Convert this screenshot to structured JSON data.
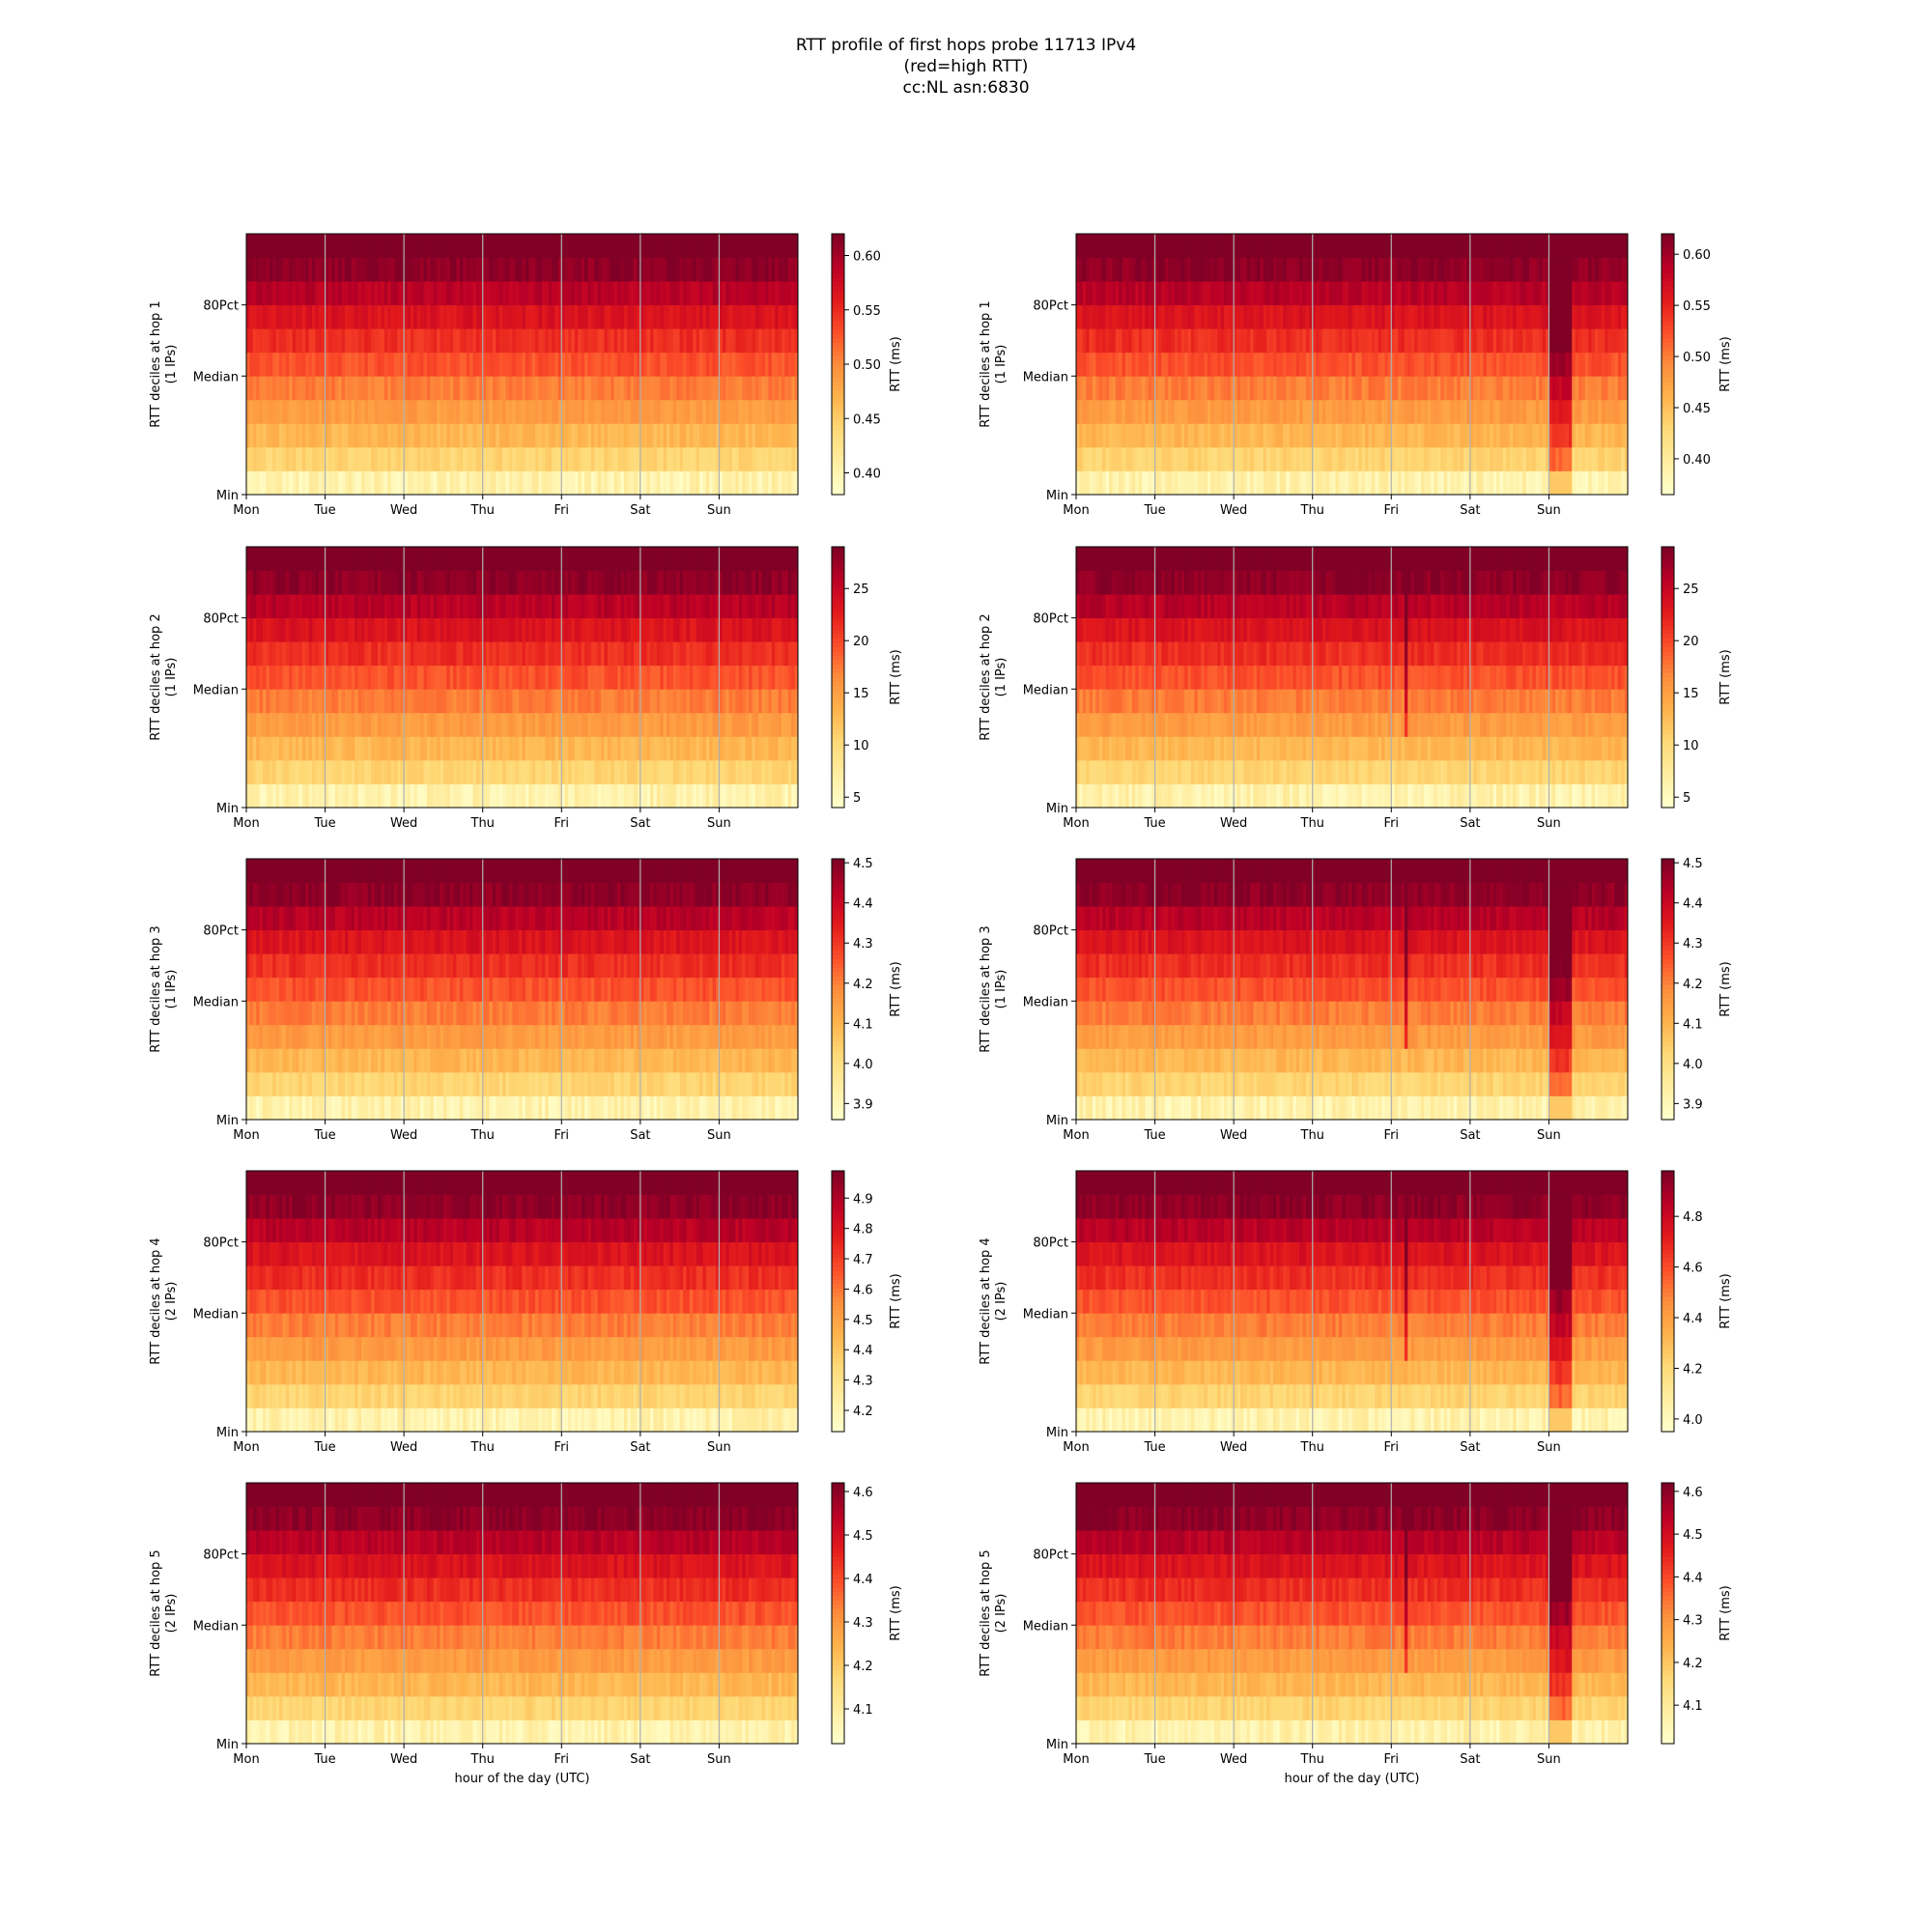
{
  "figure": {
    "title_lines": [
      "RTT profile of first hops probe 11713 IPv4",
      "(red=high RTT)",
      "cc:NL asn:6830"
    ]
  },
  "chart_data": [
    {
      "type": "heatmap",
      "hop": 1,
      "ylabel_lines": [
        "RTT deciles at hop 1",
        "(1 IPs)"
      ],
      "x_ticklabels": [
        "Mon",
        "Tue",
        "Wed",
        "Thu",
        "Fri",
        "Sat",
        "Sun"
      ],
      "xlabel": "",
      "y_ticklabels": [
        "Min",
        "Median",
        "80Pct"
      ],
      "colorbar": {
        "label": "RTT (ms)",
        "range": [
          0.38,
          0.62
        ],
        "ticks": [
          0.4,
          0.45,
          0.5,
          0.55,
          0.6
        ],
        "tick_labels": [
          "0.40",
          "0.45",
          "0.50",
          "0.55",
          "0.60"
        ]
      },
      "pattern": {
        "dip": false,
        "spike": false
      }
    },
    {
      "type": "heatmap",
      "hop": 1,
      "ylabel_lines": [
        "RTT deciles at hop 1",
        "(1 IPs)"
      ],
      "x_ticklabels": [
        "Mon",
        "Tue",
        "Wed",
        "Thu",
        "Fri",
        "Sat",
        "Sun"
      ],
      "xlabel": "",
      "y_ticklabels": [
        "Min",
        "Median",
        "80Pct"
      ],
      "colorbar": {
        "label": "RTT (ms)",
        "range": [
          0.365,
          0.62
        ],
        "ticks": [
          0.4,
          0.45,
          0.5,
          0.55,
          0.6
        ],
        "tick_labels": [
          "0.40",
          "0.45",
          "0.50",
          "0.55",
          "0.60"
        ]
      },
      "pattern": {
        "dip": true,
        "spike": false
      }
    },
    {
      "type": "heatmap",
      "hop": 2,
      "ylabel_lines": [
        "RTT deciles at hop 2",
        "(1 IPs)"
      ],
      "x_ticklabels": [
        "Mon",
        "Tue",
        "Wed",
        "Thu",
        "Fri",
        "Sat",
        "Sun"
      ],
      "xlabel": "",
      "y_ticklabels": [
        "Min",
        "Median",
        "80Pct"
      ],
      "colorbar": {
        "label": "RTT (ms)",
        "range": [
          4,
          29
        ],
        "ticks": [
          5,
          10,
          15,
          20,
          25
        ],
        "tick_labels": [
          "5",
          "10",
          "15",
          "20",
          "25"
        ]
      },
      "pattern": {
        "dip": false,
        "spike": false
      }
    },
    {
      "type": "heatmap",
      "hop": 2,
      "ylabel_lines": [
        "RTT deciles at hop 2",
        "(1 IPs)"
      ],
      "x_ticklabels": [
        "Mon",
        "Tue",
        "Wed",
        "Thu",
        "Fri",
        "Sat",
        "Sun"
      ],
      "xlabel": "",
      "y_ticklabels": [
        "Min",
        "Median",
        "80Pct"
      ],
      "colorbar": {
        "label": "RTT (ms)",
        "range": [
          4,
          29
        ],
        "ticks": [
          5,
          10,
          15,
          20,
          25
        ],
        "tick_labels": [
          "5",
          "10",
          "15",
          "20",
          "25"
        ]
      },
      "pattern": {
        "dip": false,
        "spike": true
      }
    },
    {
      "type": "heatmap",
      "hop": 3,
      "ylabel_lines": [
        "RTT deciles at hop 3",
        "(1 IPs)"
      ],
      "x_ticklabels": [
        "Mon",
        "Tue",
        "Wed",
        "Thu",
        "Fri",
        "Sat",
        "Sun"
      ],
      "xlabel": "",
      "y_ticklabels": [
        "Min",
        "Median",
        "80Pct"
      ],
      "colorbar": {
        "label": "RTT (ms)",
        "range": [
          3.86,
          4.51
        ],
        "ticks": [
          3.9,
          4.0,
          4.1,
          4.2,
          4.3,
          4.4,
          4.5
        ],
        "tick_labels": [
          "3.9",
          "4.0",
          "4.1",
          "4.2",
          "4.3",
          "4.4",
          "4.5"
        ]
      },
      "pattern": {
        "dip": false,
        "spike": false
      }
    },
    {
      "type": "heatmap",
      "hop": 3,
      "ylabel_lines": [
        "RTT deciles at hop 3",
        "(1 IPs)"
      ],
      "x_ticklabels": [
        "Mon",
        "Tue",
        "Wed",
        "Thu",
        "Fri",
        "Sat",
        "Sun"
      ],
      "xlabel": "",
      "y_ticklabels": [
        "Min",
        "Median",
        "80Pct"
      ],
      "colorbar": {
        "label": "RTT (ms)",
        "range": [
          3.86,
          4.51
        ],
        "ticks": [
          3.9,
          4.0,
          4.1,
          4.2,
          4.3,
          4.4,
          4.5
        ],
        "tick_labels": [
          "3.9",
          "4.0",
          "4.1",
          "4.2",
          "4.3",
          "4.4",
          "4.5"
        ]
      },
      "pattern": {
        "dip": true,
        "spike": true
      }
    },
    {
      "type": "heatmap",
      "hop": 4,
      "ylabel_lines": [
        "RTT deciles at hop 4",
        "(2 IPs)"
      ],
      "x_ticklabels": [
        "Mon",
        "Tue",
        "Wed",
        "Thu",
        "Fri",
        "Sat",
        "Sun"
      ],
      "xlabel": "",
      "y_ticklabels": [
        "Min",
        "Median",
        "80Pct"
      ],
      "colorbar": {
        "label": "RTT (ms)",
        "range": [
          4.13,
          4.99
        ],
        "ticks": [
          4.2,
          4.3,
          4.4,
          4.5,
          4.6,
          4.7,
          4.8,
          4.9
        ],
        "tick_labels": [
          "4.2",
          "4.3",
          "4.4",
          "4.5",
          "4.6",
          "4.7",
          "4.8",
          "4.9"
        ]
      },
      "pattern": {
        "dip": false,
        "spike": false
      }
    },
    {
      "type": "heatmap",
      "hop": 4,
      "ylabel_lines": [
        "RTT deciles at hop 4",
        "(2 IPs)"
      ],
      "x_ticklabels": [
        "Mon",
        "Tue",
        "Wed",
        "Thu",
        "Fri",
        "Sat",
        "Sun"
      ],
      "xlabel": "",
      "y_ticklabels": [
        "Min",
        "Median",
        "80Pct"
      ],
      "colorbar": {
        "label": "RTT (ms)",
        "range": [
          3.95,
          4.98
        ],
        "ticks": [
          4.0,
          4.2,
          4.4,
          4.6,
          4.8
        ],
        "tick_labels": [
          "4.0",
          "4.2",
          "4.4",
          "4.6",
          "4.8"
        ]
      },
      "pattern": {
        "dip": true,
        "spike": true
      }
    },
    {
      "type": "heatmap",
      "hop": 5,
      "ylabel_lines": [
        "RTT deciles at hop 5",
        "(2 IPs)"
      ],
      "x_ticklabels": [
        "Mon",
        "Tue",
        "Wed",
        "Thu",
        "Fri",
        "Sat",
        "Sun"
      ],
      "xlabel": "hour of the day (UTC)",
      "y_ticklabels": [
        "Min",
        "Median",
        "80Pct"
      ],
      "colorbar": {
        "label": "RTT (ms)",
        "range": [
          4.02,
          4.62
        ],
        "ticks": [
          4.1,
          4.2,
          4.3,
          4.4,
          4.5,
          4.6
        ],
        "tick_labels": [
          "4.1",
          "4.2",
          "4.3",
          "4.4",
          "4.5",
          "4.6"
        ]
      },
      "pattern": {
        "dip": false,
        "spike": false
      }
    },
    {
      "type": "heatmap",
      "hop": 5,
      "ylabel_lines": [
        "RTT deciles at hop 5",
        "(2 IPs)"
      ],
      "x_ticklabels": [
        "Mon",
        "Tue",
        "Wed",
        "Thu",
        "Fri",
        "Sat",
        "Sun"
      ],
      "xlabel": "hour of the day (UTC)",
      "y_ticklabels": [
        "Min",
        "Median",
        "80Pct"
      ],
      "colorbar": {
        "label": "RTT (ms)",
        "range": [
          4.01,
          4.62
        ],
        "ticks": [
          4.1,
          4.2,
          4.3,
          4.4,
          4.5,
          4.6
        ],
        "tick_labels": [
          "4.1",
          "4.2",
          "4.3",
          "4.4",
          "4.5",
          "4.6"
        ]
      },
      "pattern": {
        "dip": true,
        "spike": true
      }
    }
  ]
}
